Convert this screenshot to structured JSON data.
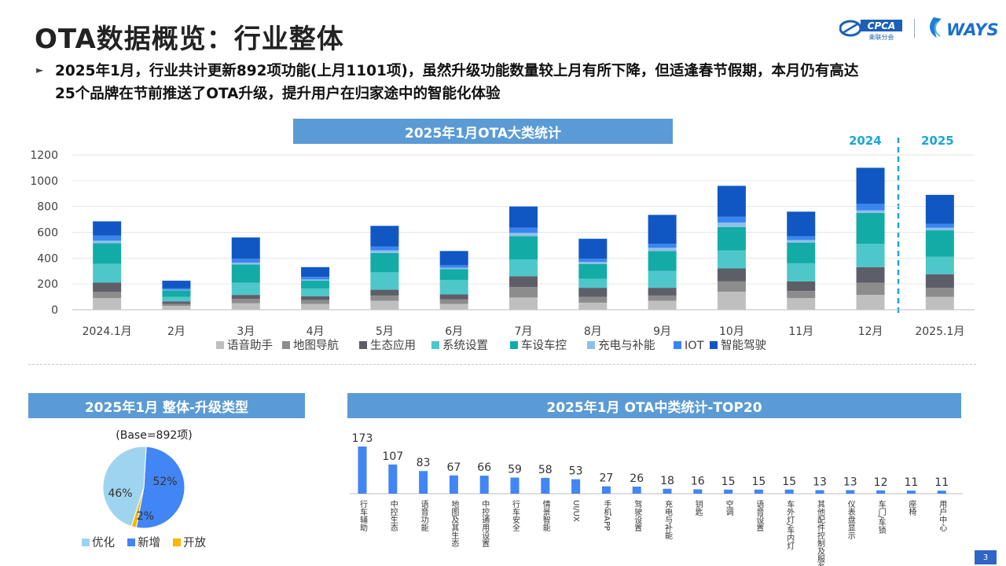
{
  "page": {
    "title": "OTA数据概览：行业整体",
    "logo_cpca_text": "CPCA",
    "logo_cpca_sub": "乘联分会",
    "logo_ways_text": "WAYS",
    "summary_line1": "2025年1月，行业共计更新892项功能(上月1101项)，虽然升级功能数量较上月有所下降，但适逢春节假期，本月仍有高达",
    "summary_line2": "25个品牌在节前推送了OTA升级，提升用户在归家途中的智能化体验",
    "year_2024": "2024",
    "year_2025": "2025",
    "page_number": "3"
  },
  "colors": {
    "header_bg": "#5b9bd5",
    "accent": "#1aa6d8",
    "series": [
      "#bfbfbf",
      "#8c8c8c",
      "#5e5e69",
      "#4dc7c9",
      "#13aba6",
      "#8fbfe8",
      "#3a86f0",
      "#1157c4"
    ],
    "pie": [
      "#9fd4ef",
      "#4285f4",
      "#f5b800"
    ],
    "bar_blue": "#4285f4"
  },
  "chart_data": [
    {
      "type": "bar",
      "stacked": true,
      "title": "2025年1月OTA大类统计",
      "categories": [
        "2024.1月",
        "2月",
        "3月",
        "4月",
        "5月",
        "6月",
        "7月",
        "8月",
        "9月",
        "10月",
        "11月",
        "12月",
        "2025.1月"
      ],
      "yticks": [
        "0",
        "200",
        "400",
        "600",
        "800",
        "1000",
        "1200"
      ],
      "ylim": [
        0,
        1200
      ],
      "legend_position": "bottom",
      "grid": true,
      "series": [
        {
          "name": "语音助手",
          "values": [
            90,
            30,
            50,
            45,
            70,
            45,
            95,
            55,
            70,
            140,
            90,
            115,
            100
          ]
        },
        {
          "name": "地图导航",
          "values": [
            50,
            15,
            35,
            30,
            40,
            35,
            80,
            45,
            40,
            80,
            55,
            95,
            70
          ]
        },
        {
          "name": "生态应用",
          "values": [
            70,
            20,
            30,
            30,
            45,
            40,
            85,
            70,
            60,
            100,
            75,
            120,
            105
          ]
        },
        {
          "name": "系统设置",
          "values": [
            145,
            35,
            95,
            60,
            135,
            110,
            130,
            70,
            130,
            140,
            140,
            180,
            135
          ]
        },
        {
          "name": "车设车控",
          "values": [
            160,
            50,
            140,
            60,
            150,
            85,
            180,
            115,
            155,
            180,
            160,
            240,
            205
          ]
        },
        {
          "name": "充电与补能",
          "values": [
            20,
            5,
            15,
            10,
            20,
            10,
            25,
            15,
            25,
            35,
            20,
            20,
            20
          ]
        },
        {
          "name": "IOT",
          "values": [
            40,
            10,
            30,
            20,
            30,
            20,
            40,
            25,
            30,
            45,
            30,
            50,
            30
          ]
        },
        {
          "name": "智能驾驶",
          "values": [
            110,
            60,
            165,
            75,
            160,
            110,
            165,
            155,
            225,
            240,
            190,
            280,
            225
          ]
        }
      ]
    },
    {
      "type": "pie",
      "title": "2025年1月 整体-升级类型",
      "base_label": "(Base=892项)",
      "legend_position": "bottom",
      "slices": [
        {
          "name": "优化",
          "value": 46,
          "label": "46%"
        },
        {
          "name": "新增",
          "value": 52,
          "label": "52%"
        },
        {
          "name": "开放",
          "value": 2,
          "label": "2%"
        }
      ]
    },
    {
      "type": "bar",
      "title": "2025年1月 OTA中类统计-TOP20",
      "categories": [
        "行车辅助",
        "中控生态",
        "语音功能",
        "地图及其生态",
        "中控通用设置",
        "行车安全",
        "情景智能",
        "UI/UX",
        "手机APP",
        "驾驶设置",
        "充电与补能",
        "钥匙",
        "空调",
        "语音设置",
        "车外灯/车内灯",
        "其他配件控制及服务",
        "仪表盘显示",
        "车门/车锁",
        "座椅",
        "用户中心"
      ],
      "values": [
        173,
        107,
        83,
        67,
        66,
        59,
        58,
        53,
        27,
        26,
        18,
        16,
        15,
        15,
        15,
        13,
        13,
        12,
        11,
        11
      ],
      "ylim": [
        0,
        173
      ]
    }
  ]
}
